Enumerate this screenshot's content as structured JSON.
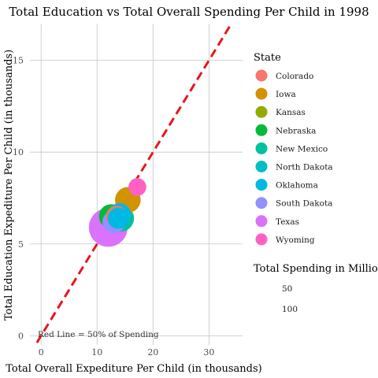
{
  "chart_data": {
    "type": "scatter",
    "title": "Total Education vs Total Overall Spending Per Child in 1998",
    "xlabel": "Total Overall Expediture Per Child (in thousands)",
    "ylabel": "Total Education Expediture Per Child (in thousands)",
    "xlim": [
      -2,
      36
    ],
    "ylim": [
      -0.5,
      17
    ],
    "x_ticks": [
      0,
      10,
      20,
      30
    ],
    "y_ticks": [
      0,
      5,
      10,
      15
    ],
    "grid": true,
    "reference_line": {
      "slope": 0.5,
      "intercept": 0,
      "color": "#e8161b",
      "style": "dashed"
    },
    "annotation": "Red Line = 50% of Spending",
    "legend_position": "right",
    "color_legend_title": "State",
    "size_legend_title": "Total Spending in Millions",
    "size_legend_values": [
      50,
      100
    ],
    "series": [
      {
        "name": "Colorado",
        "color": "#F8766D",
        "points": [
          {
            "x": 13.5,
            "y": 6.5,
            "size": 30
          }
        ]
      },
      {
        "name": "Iowa",
        "color": "#D39200",
        "points": [
          {
            "x": 15.5,
            "y": 7.4,
            "size": 45
          }
        ]
      },
      {
        "name": "Kansas",
        "color": "#93AA00",
        "points": [
          {
            "x": 13.3,
            "y": 6.5,
            "size": 40
          }
        ]
      },
      {
        "name": "Nebraska",
        "color": "#00BA38",
        "points": [
          {
            "x": 12.5,
            "y": 6.5,
            "size": 40
          }
        ]
      },
      {
        "name": "New Mexico",
        "color": "#00C19F",
        "points": [
          {
            "x": 14.2,
            "y": 6.4,
            "size": 50
          }
        ]
      },
      {
        "name": "North Dakota",
        "color": "#00B9E3",
        "points": [
          {
            "x": 14.0,
            "y": 6.6,
            "size": 35
          }
        ]
      },
      {
        "name": "Oklahoma",
        "color": "#00B9E3",
        "points": [
          {
            "x": 13.8,
            "y": 6.4,
            "size": 30
          }
        ]
      },
      {
        "name": "South Dakota",
        "color": "#9590FF",
        "points": [
          {
            "x": 13.0,
            "y": 6.2,
            "size": 35
          }
        ]
      },
      {
        "name": "Texas",
        "color": "#DB72FB",
        "points": [
          {
            "x": 12.0,
            "y": 5.9,
            "size": 110
          }
        ]
      },
      {
        "name": "Wyoming",
        "color": "#FF61C3",
        "points": [
          {
            "x": 17.2,
            "y": 8.1,
            "size": 20
          }
        ]
      }
    ],
    "legend_colors": [
      "#F8766D",
      "#D39200",
      "#93AA00",
      "#00BA38",
      "#00C19F",
      "#00BFC4",
      "#00B9E3",
      "#9590FF",
      "#DB72FB",
      "#FF61C3"
    ]
  }
}
